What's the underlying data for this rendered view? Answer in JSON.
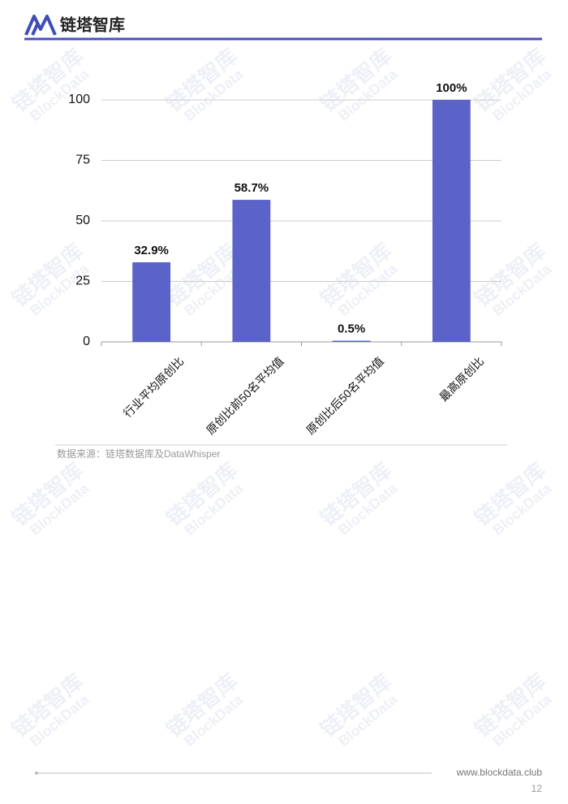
{
  "header": {
    "logo": "链塔智库"
  },
  "watermark": {
    "name": "链塔智库",
    "en": "BlockData"
  },
  "chart_data": {
    "type": "bar",
    "categories": [
      "行业平均原创比",
      "原创比前50名平均值",
      "原创比后50名平均值",
      "最高原创比"
    ],
    "values": [
      32.9,
      58.7,
      0.5,
      100
    ],
    "value_labels": [
      "32.9%",
      "58.7%",
      "0.5%",
      "100%"
    ],
    "color": "#5b63c8",
    "ylim": [
      0,
      100
    ],
    "yticks": [
      0,
      25,
      50,
      75,
      100
    ],
    "grid": true
  },
  "source": "数据来源：链塔数据库及DataWhisper",
  "footer": {
    "url": "www.blockdata.club",
    "page": "12"
  }
}
